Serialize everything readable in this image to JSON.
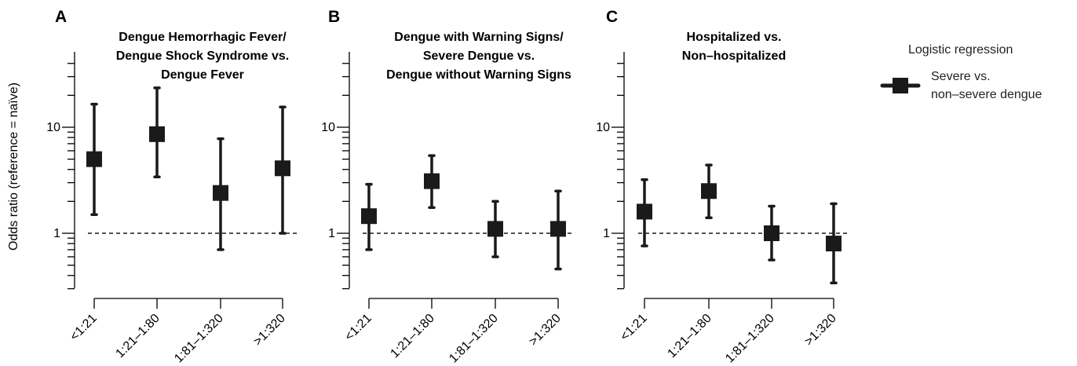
{
  "ylabel": "Odds ratio (reference = naïve)",
  "legend": {
    "title": "Logistic regression",
    "entry_line1": "Severe vs.",
    "entry_line2": "non–severe dengue"
  },
  "colors": {
    "marker": "#1a1a1a",
    "reference_line": "#1a1a1a"
  },
  "chart_data": [
    {
      "type": "scatter",
      "panel": "A",
      "title_lines": [
        "Dengue Hemorrhagic Fever/",
        "Dengue Shock Syndrome vs.",
        "Dengue Fever"
      ],
      "categories": [
        "<1:21",
        "1:21–1:80",
        "1:81–1:320",
        ">1:320"
      ],
      "y_scale": "log",
      "ylim": [
        0.3,
        45
      ],
      "yticks": [
        1,
        10
      ],
      "reference_line": 1,
      "series": [
        {
          "name": "Severe vs. non–severe dengue",
          "values": [
            5.0,
            8.6,
            2.4,
            4.1
          ],
          "ci_low": [
            1.5,
            3.4,
            0.7,
            1.0
          ],
          "ci_high": [
            16.5,
            23.5,
            7.8,
            15.5
          ]
        }
      ]
    },
    {
      "type": "scatter",
      "panel": "B",
      "title_lines": [
        "Dengue with Warning Signs/",
        "Severe Dengue vs.",
        "Dengue without Warning Signs"
      ],
      "categories": [
        "<1:21",
        "1:21–1:80",
        "1:81–1:320",
        ">1:320"
      ],
      "y_scale": "log",
      "ylim": [
        0.3,
        45
      ],
      "yticks": [
        1,
        10
      ],
      "reference_line": 1,
      "series": [
        {
          "name": "Severe vs. non–severe dengue",
          "values": [
            1.45,
            3.1,
            1.1,
            1.1
          ],
          "ci_low": [
            0.7,
            1.75,
            0.6,
            0.46
          ],
          "ci_high": [
            2.9,
            5.4,
            2.0,
            2.5
          ]
        }
      ]
    },
    {
      "type": "scatter",
      "panel": "C",
      "title_lines": [
        "Hospitalized vs.",
        "Non–hospitalized"
      ],
      "categories": [
        "<1:21",
        "1:21–1:80",
        "1:81–1:320",
        ">1:320"
      ],
      "y_scale": "log",
      "ylim": [
        0.3,
        45
      ],
      "yticks": [
        1,
        10
      ],
      "reference_line": 1,
      "series": [
        {
          "name": "Severe vs. non–severe dengue",
          "values": [
            1.6,
            2.5,
            1.0,
            0.8
          ],
          "ci_low": [
            0.76,
            1.4,
            0.56,
            0.34
          ],
          "ci_high": [
            3.2,
            4.4,
            1.8,
            1.9
          ]
        }
      ]
    }
  ]
}
